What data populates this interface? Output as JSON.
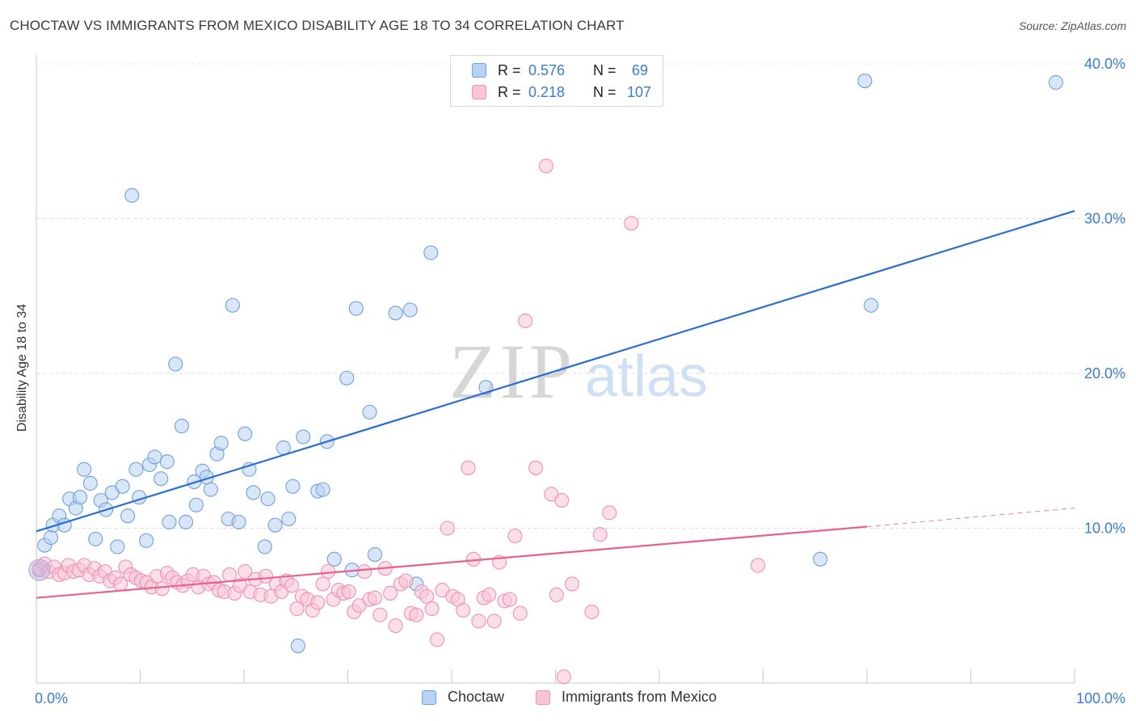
{
  "title": "CHOCTAW VS IMMIGRANTS FROM MEXICO DISABILITY AGE 18 TO 34 CORRELATION CHART",
  "source": "Source: ZipAtlas.com",
  "watermark": {
    "zip": "ZIP",
    "atlas": "atlas"
  },
  "legend": {
    "rows": [
      {
        "r_label": "R =",
        "r_value": "0.576",
        "n_label": "N =",
        "n_value": "69",
        "color": "#3a7bd5"
      },
      {
        "r_label": "R =",
        "r_value": "0.218",
        "n_label": "N =",
        "n_value": "107",
        "color": "#3a7bd5"
      }
    ]
  },
  "chart_data": {
    "type": "scatter",
    "title": "CHOCTAW VS IMMIGRANTS FROM MEXICO DISABILITY AGE 18 TO 34 CORRELATION CHART",
    "xlabel": "",
    "ylabel": "Disability Age 18 to 34",
    "xlim": [
      0,
      100
    ],
    "ylim": [
      0,
      40
    ],
    "x_tick_labels": [
      "0.0%",
      "100.0%"
    ],
    "y_ticks": [
      10,
      20,
      30,
      40
    ],
    "y_tick_labels": [
      "10.0%",
      "20.0%",
      "30.0%",
      "40.0%"
    ],
    "grid": "horizontal dashed",
    "series": [
      {
        "name": "Choctaw",
        "color": "#6fa0e0",
        "fill": "#b9d2f3",
        "line_color": "#2a6fd0",
        "trend": {
          "x": [
            0,
            100
          ],
          "y": [
            9.8,
            30.5
          ]
        },
        "points": [
          [
            0.3,
            7.3
          ],
          [
            0.8,
            8.9
          ],
          [
            1.4,
            9.4
          ],
          [
            1.6,
            10.2
          ],
          [
            2.2,
            10.8
          ],
          [
            2.7,
            10.2
          ],
          [
            3.2,
            11.9
          ],
          [
            3.8,
            11.3
          ],
          [
            4.2,
            12.0
          ],
          [
            4.6,
            13.8
          ],
          [
            5.2,
            12.9
          ],
          [
            5.7,
            9.3
          ],
          [
            6.2,
            11.8
          ],
          [
            6.7,
            11.2
          ],
          [
            7.3,
            12.3
          ],
          [
            7.8,
            8.8
          ],
          [
            8.3,
            12.7
          ],
          [
            8.8,
            10.8
          ],
          [
            9.2,
            31.5
          ],
          [
            9.6,
            13.8
          ],
          [
            9.9,
            12.0
          ],
          [
            10.6,
            9.2
          ],
          [
            10.9,
            14.1
          ],
          [
            11.4,
            14.6
          ],
          [
            12.0,
            13.2
          ],
          [
            12.6,
            14.3
          ],
          [
            12.8,
            10.4
          ],
          [
            13.4,
            20.6
          ],
          [
            14.0,
            16.6
          ],
          [
            14.4,
            10.4
          ],
          [
            15.2,
            13.0
          ],
          [
            15.4,
            11.5
          ],
          [
            16.0,
            13.7
          ],
          [
            16.4,
            13.3
          ],
          [
            16.8,
            12.5
          ],
          [
            17.4,
            14.8
          ],
          [
            17.8,
            15.5
          ],
          [
            18.5,
            10.6
          ],
          [
            18.9,
            24.4
          ],
          [
            19.5,
            10.4
          ],
          [
            20.1,
            16.1
          ],
          [
            20.5,
            13.8
          ],
          [
            20.9,
            12.3
          ],
          [
            22.0,
            8.8
          ],
          [
            22.3,
            11.9
          ],
          [
            23.0,
            10.2
          ],
          [
            23.8,
            15.2
          ],
          [
            24.3,
            10.6
          ],
          [
            24.7,
            12.7
          ],
          [
            25.2,
            2.4
          ],
          [
            25.7,
            15.9
          ],
          [
            27.1,
            12.4
          ],
          [
            27.6,
            12.5
          ],
          [
            28.0,
            15.6
          ],
          [
            28.7,
            8.0
          ],
          [
            29.9,
            19.7
          ],
          [
            30.4,
            7.3
          ],
          [
            30.8,
            24.2
          ],
          [
            32.1,
            17.5
          ],
          [
            32.6,
            8.3
          ],
          [
            34.6,
            23.9
          ],
          [
            36.0,
            24.1
          ],
          [
            36.6,
            6.4
          ],
          [
            38.0,
            27.8
          ],
          [
            43.3,
            19.1
          ],
          [
            75.5,
            8.0
          ],
          [
            79.8,
            38.9
          ],
          [
            80.4,
            24.4
          ],
          [
            98.2,
            38.8
          ]
        ]
      },
      {
        "name": "Immigrants from Mexico",
        "color": "#f090b0",
        "fill": "#f8c5d5",
        "line_color": "#e8608f",
        "trend": {
          "x": [
            0,
            80
          ],
          "y": [
            5.5,
            10.1
          ]
        },
        "trend_dashed": {
          "x": [
            80,
            100
          ],
          "y": [
            10.1,
            11.3
          ]
        },
        "points": [
          [
            0.3,
            7.4
          ],
          [
            0.8,
            7.7
          ],
          [
            1.2,
            7.2
          ],
          [
            1.7,
            7.5
          ],
          [
            2.2,
            7.0
          ],
          [
            2.7,
            7.1
          ],
          [
            3.1,
            7.6
          ],
          [
            3.6,
            7.2
          ],
          [
            4.1,
            7.3
          ],
          [
            4.6,
            7.6
          ],
          [
            5.1,
            7.0
          ],
          [
            5.6,
            7.4
          ],
          [
            6.1,
            6.9
          ],
          [
            6.6,
            7.2
          ],
          [
            7.1,
            6.6
          ],
          [
            7.6,
            6.8
          ],
          [
            8.1,
            6.4
          ],
          [
            8.6,
            7.5
          ],
          [
            9.1,
            7.0
          ],
          [
            9.6,
            6.8
          ],
          [
            10.1,
            6.6
          ],
          [
            10.6,
            6.5
          ],
          [
            11.1,
            6.2
          ],
          [
            11.6,
            6.9
          ],
          [
            12.1,
            6.1
          ],
          [
            12.6,
            7.1
          ],
          [
            13.1,
            6.8
          ],
          [
            13.6,
            6.5
          ],
          [
            14.1,
            6.3
          ],
          [
            14.6,
            6.6
          ],
          [
            15.1,
            7.0
          ],
          [
            15.6,
            6.2
          ],
          [
            16.1,
            6.9
          ],
          [
            16.6,
            6.4
          ],
          [
            17.1,
            6.5
          ],
          [
            17.6,
            6.0
          ],
          [
            18.1,
            5.9
          ],
          [
            18.6,
            7.0
          ],
          [
            19.1,
            5.8
          ],
          [
            19.6,
            6.3
          ],
          [
            20.1,
            7.2
          ],
          [
            20.6,
            5.9
          ],
          [
            21.1,
            6.7
          ],
          [
            21.6,
            5.7
          ],
          [
            22.1,
            6.9
          ],
          [
            22.6,
            5.6
          ],
          [
            23.1,
            6.4
          ],
          [
            23.6,
            5.9
          ],
          [
            24.1,
            6.6
          ],
          [
            24.6,
            6.3
          ],
          [
            25.1,
            4.8
          ],
          [
            25.6,
            5.6
          ],
          [
            26.1,
            5.4
          ],
          [
            26.6,
            4.7
          ],
          [
            27.1,
            5.2
          ],
          [
            27.6,
            6.4
          ],
          [
            28.1,
            7.2
          ],
          [
            28.6,
            5.4
          ],
          [
            29.1,
            6.0
          ],
          [
            29.6,
            5.8
          ],
          [
            30.1,
            5.9
          ],
          [
            30.6,
            4.6
          ],
          [
            31.1,
            5.0
          ],
          [
            31.6,
            7.2
          ],
          [
            32.1,
            5.4
          ],
          [
            32.6,
            5.5
          ],
          [
            33.1,
            4.4
          ],
          [
            33.6,
            7.4
          ],
          [
            34.1,
            5.8
          ],
          [
            34.6,
            3.7
          ],
          [
            35.1,
            6.4
          ],
          [
            35.6,
            6.6
          ],
          [
            36.1,
            4.5
          ],
          [
            36.6,
            4.4
          ],
          [
            37.1,
            5.9
          ],
          [
            37.6,
            5.6
          ],
          [
            38.1,
            4.8
          ],
          [
            38.6,
            2.8
          ],
          [
            39.1,
            6.0
          ],
          [
            39.6,
            10.0
          ],
          [
            40.1,
            5.6
          ],
          [
            40.6,
            5.4
          ],
          [
            41.1,
            4.7
          ],
          [
            41.6,
            13.9
          ],
          [
            42.1,
            8.0
          ],
          [
            42.6,
            4.0
          ],
          [
            43.1,
            5.5
          ],
          [
            43.6,
            5.7
          ],
          [
            44.1,
            4.0
          ],
          [
            44.6,
            7.8
          ],
          [
            45.1,
            5.3
          ],
          [
            45.6,
            5.4
          ],
          [
            46.1,
            9.5
          ],
          [
            46.6,
            4.5
          ],
          [
            47.1,
            23.4
          ],
          [
            48.1,
            13.9
          ],
          [
            49.1,
            33.4
          ],
          [
            49.6,
            12.2
          ],
          [
            50.1,
            5.7
          ],
          [
            50.6,
            11.8
          ],
          [
            50.8,
            0.4
          ],
          [
            51.6,
            6.4
          ],
          [
            53.5,
            4.6
          ],
          [
            54.3,
            9.6
          ],
          [
            55.2,
            11.0
          ],
          [
            57.3,
            29.7
          ],
          [
            69.5,
            7.6
          ]
        ]
      }
    ]
  },
  "bottom_legend": [
    {
      "label": "Choctaw"
    },
    {
      "label": "Immigrants from Mexico"
    }
  ]
}
